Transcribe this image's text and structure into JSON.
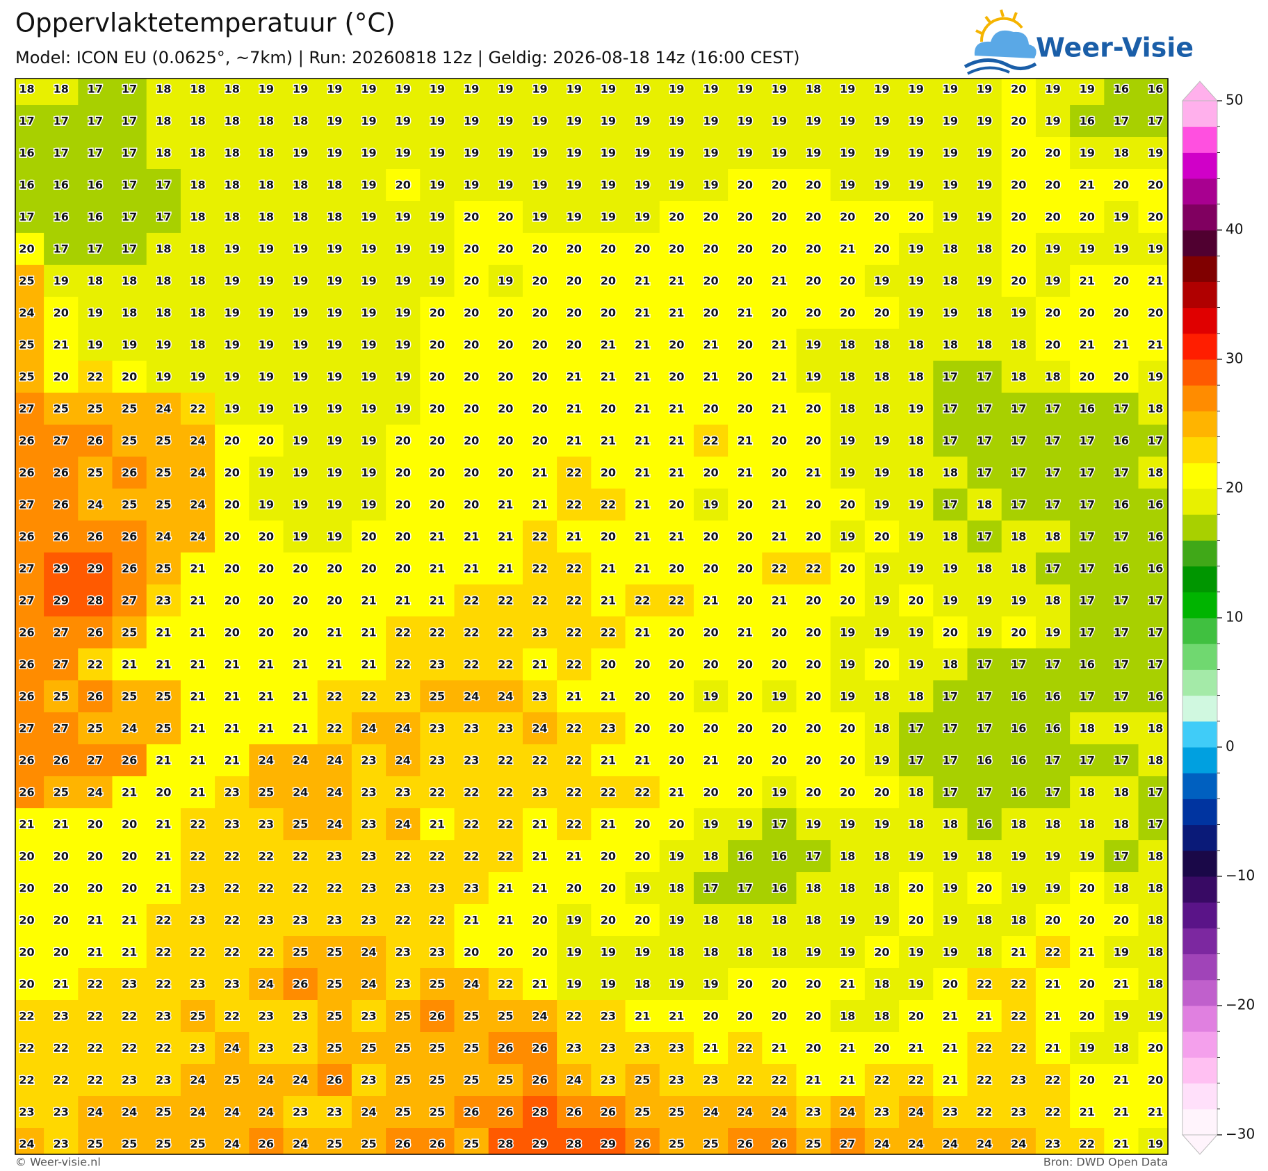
{
  "chart_data": {
    "type": "heatmap",
    "title": "Oppervlaktetemperatuur (°C)",
    "subtitle": "Model: ICON EU (0.0625°, ~7km)  |  Run: 20260818 12z  |  Geldig: 2026-08-18 14z (16:00 CEST)",
    "logo": "Weer-Visie",
    "footer_left": "© Weer-visie.nl",
    "footer_right": "Bron: DWD Open Data",
    "values": [
      [
        18,
        18,
        17,
        17,
        18,
        18,
        18,
        19,
        19,
        19,
        19,
        19,
        19,
        19,
        19,
        19,
        19,
        19,
        19,
        19,
        19,
        19,
        19,
        18,
        19,
        19,
        19,
        19,
        19,
        20,
        19,
        19,
        16,
        16
      ],
      [
        17,
        17,
        17,
        17,
        18,
        18,
        18,
        18,
        18,
        19,
        19,
        19,
        19,
        19,
        19,
        19,
        19,
        19,
        19,
        19,
        19,
        19,
        19,
        19,
        19,
        19,
        19,
        19,
        19,
        20,
        19,
        16,
        17,
        17
      ],
      [
        16,
        17,
        17,
        17,
        18,
        18,
        18,
        18,
        19,
        19,
        19,
        19,
        19,
        19,
        19,
        19,
        19,
        19,
        19,
        19,
        19,
        19,
        19,
        19,
        19,
        19,
        19,
        19,
        19,
        20,
        20,
        19,
        18,
        19
      ],
      [
        16,
        16,
        16,
        17,
        17,
        18,
        18,
        18,
        18,
        18,
        19,
        20,
        19,
        19,
        19,
        19,
        19,
        19,
        19,
        19,
        19,
        20,
        20,
        20,
        19,
        19,
        19,
        19,
        19,
        20,
        20,
        21,
        20,
        20
      ],
      [
        17,
        16,
        16,
        17,
        17,
        18,
        18,
        18,
        18,
        18,
        19,
        19,
        19,
        20,
        20,
        19,
        19,
        19,
        19,
        20,
        20,
        20,
        20,
        20,
        20,
        20,
        20,
        19,
        19,
        20,
        20,
        20,
        19,
        20
      ],
      [
        20,
        17,
        17,
        17,
        18,
        18,
        19,
        19,
        19,
        19,
        19,
        19,
        19,
        20,
        20,
        20,
        20,
        20,
        20,
        20,
        20,
        20,
        20,
        20,
        21,
        20,
        19,
        18,
        18,
        20,
        19,
        19,
        19,
        19
      ],
      [
        25,
        19,
        18,
        18,
        18,
        18,
        19,
        19,
        19,
        19,
        19,
        19,
        19,
        20,
        19,
        20,
        20,
        20,
        21,
        21,
        20,
        20,
        21,
        20,
        20,
        19,
        19,
        18,
        19,
        20,
        19,
        21,
        20,
        21
      ],
      [
        24,
        20,
        19,
        18,
        18,
        18,
        19,
        19,
        19,
        19,
        19,
        19,
        20,
        20,
        20,
        20,
        20,
        20,
        21,
        21,
        20,
        21,
        20,
        20,
        20,
        20,
        19,
        19,
        18,
        19,
        20,
        20,
        20,
        20
      ],
      [
        25,
        21,
        19,
        19,
        19,
        18,
        19,
        19,
        19,
        19,
        19,
        19,
        20,
        20,
        20,
        20,
        20,
        21,
        21,
        20,
        21,
        20,
        21,
        19,
        18,
        18,
        18,
        18,
        18,
        18,
        20,
        21,
        21,
        21
      ],
      [
        25,
        20,
        22,
        20,
        19,
        19,
        19,
        19,
        19,
        19,
        19,
        19,
        20,
        20,
        20,
        20,
        21,
        21,
        21,
        20,
        21,
        20,
        21,
        19,
        18,
        18,
        18,
        17,
        17,
        18,
        18,
        20,
        20,
        19
      ],
      [
        27,
        25,
        25,
        25,
        24,
        22,
        19,
        19,
        19,
        19,
        19,
        19,
        20,
        20,
        20,
        20,
        21,
        20,
        21,
        21,
        20,
        20,
        21,
        20,
        18,
        18,
        19,
        17,
        17,
        17,
        17,
        16,
        17,
        18
      ],
      [
        26,
        27,
        26,
        25,
        25,
        24,
        20,
        20,
        19,
        19,
        19,
        20,
        20,
        20,
        20,
        20,
        21,
        21,
        21,
        21,
        22,
        21,
        20,
        20,
        19,
        19,
        18,
        17,
        17,
        17,
        17,
        17,
        16,
        17
      ],
      [
        26,
        26,
        25,
        26,
        25,
        24,
        20,
        19,
        19,
        19,
        19,
        20,
        20,
        20,
        20,
        21,
        22,
        20,
        21,
        21,
        20,
        21,
        20,
        21,
        19,
        19,
        18,
        18,
        17,
        17,
        17,
        17,
        17,
        18
      ],
      [
        27,
        26,
        24,
        25,
        25,
        24,
        20,
        19,
        19,
        19,
        19,
        20,
        20,
        20,
        21,
        21,
        22,
        22,
        21,
        20,
        19,
        20,
        21,
        20,
        20,
        19,
        19,
        17,
        18,
        17,
        17,
        17,
        16,
        16
      ],
      [
        26,
        26,
        26,
        26,
        24,
        24,
        20,
        20,
        19,
        19,
        20,
        20,
        21,
        21,
        21,
        22,
        21,
        20,
        21,
        21,
        20,
        20,
        21,
        20,
        19,
        20,
        19,
        18,
        17,
        18,
        18,
        17,
        17,
        16
      ],
      [
        27,
        29,
        29,
        26,
        25,
        21,
        20,
        20,
        20,
        20,
        20,
        20,
        21,
        21,
        21,
        22,
        22,
        21,
        21,
        20,
        20,
        20,
        22,
        22,
        20,
        19,
        19,
        19,
        18,
        18,
        17,
        17,
        16,
        16
      ],
      [
        27,
        29,
        28,
        27,
        23,
        21,
        20,
        20,
        20,
        20,
        21,
        21,
        21,
        22,
        22,
        22,
        22,
        21,
        22,
        22,
        21,
        20,
        21,
        20,
        20,
        19,
        20,
        19,
        19,
        19,
        18,
        17,
        17,
        17
      ],
      [
        26,
        27,
        26,
        25,
        21,
        21,
        20,
        20,
        20,
        21,
        21,
        22,
        22,
        22,
        22,
        23,
        22,
        22,
        21,
        20,
        20,
        21,
        20,
        20,
        19,
        19,
        19,
        20,
        19,
        20,
        19,
        17,
        17,
        17
      ],
      [
        26,
        27,
        22,
        21,
        21,
        21,
        21,
        21,
        21,
        21,
        21,
        22,
        23,
        22,
        22,
        21,
        22,
        20,
        20,
        20,
        20,
        20,
        20,
        20,
        19,
        20,
        19,
        18,
        17,
        17,
        17,
        16,
        17,
        17
      ],
      [
        26,
        25,
        26,
        25,
        25,
        21,
        21,
        21,
        21,
        22,
        22,
        23,
        25,
        24,
        24,
        23,
        21,
        21,
        20,
        20,
        19,
        20,
        19,
        20,
        19,
        18,
        18,
        17,
        17,
        16,
        16,
        17,
        17,
        16
      ],
      [
        27,
        27,
        25,
        24,
        25,
        21,
        21,
        21,
        21,
        22,
        24,
        24,
        23,
        23,
        23,
        24,
        22,
        23,
        20,
        20,
        20,
        20,
        20,
        20,
        20,
        18,
        17,
        17,
        17,
        16,
        16,
        18,
        19,
        18
      ],
      [
        26,
        26,
        27,
        26,
        21,
        21,
        21,
        24,
        24,
        24,
        23,
        24,
        23,
        23,
        22,
        22,
        22,
        21,
        21,
        20,
        21,
        20,
        20,
        20,
        20,
        19,
        17,
        17,
        16,
        16,
        17,
        17,
        17,
        18
      ],
      [
        26,
        25,
        24,
        21,
        20,
        21,
        23,
        25,
        24,
        24,
        23,
        23,
        22,
        22,
        22,
        23,
        22,
        22,
        22,
        21,
        20,
        20,
        19,
        20,
        20,
        20,
        18,
        17,
        17,
        16,
        17,
        18,
        18,
        17
      ],
      [
        21,
        21,
        20,
        20,
        21,
        22,
        23,
        23,
        25,
        24,
        23,
        24,
        21,
        22,
        22,
        21,
        22,
        21,
        20,
        20,
        19,
        19,
        17,
        19,
        19,
        19,
        18,
        18,
        16,
        18,
        18,
        18,
        18,
        17
      ],
      [
        20,
        20,
        20,
        20,
        21,
        22,
        22,
        22,
        22,
        23,
        23,
        22,
        22,
        22,
        22,
        21,
        21,
        20,
        20,
        19,
        18,
        16,
        16,
        17,
        18,
        18,
        19,
        19,
        18,
        19,
        19,
        19,
        17,
        18
      ],
      [
        20,
        20,
        20,
        20,
        21,
        23,
        22,
        22,
        22,
        22,
        23,
        23,
        23,
        23,
        21,
        21,
        20,
        20,
        19,
        18,
        17,
        17,
        16,
        18,
        18,
        18,
        20,
        19,
        20,
        19,
        19,
        20,
        18,
        18
      ],
      [
        20,
        20,
        21,
        21,
        22,
        23,
        22,
        23,
        23,
        23,
        23,
        22,
        22,
        21,
        21,
        20,
        19,
        20,
        20,
        19,
        18,
        18,
        18,
        18,
        19,
        19,
        20,
        19,
        18,
        18,
        20,
        20,
        20,
        18
      ],
      [
        20,
        20,
        21,
        21,
        22,
        22,
        22,
        22,
        25,
        25,
        24,
        23,
        23,
        20,
        20,
        20,
        19,
        19,
        19,
        18,
        18,
        18,
        18,
        19,
        19,
        20,
        19,
        19,
        18,
        21,
        22,
        21,
        19,
        18
      ],
      [
        20,
        21,
        22,
        23,
        22,
        23,
        23,
        24,
        26,
        25,
        24,
        23,
        25,
        24,
        22,
        21,
        19,
        19,
        18,
        19,
        19,
        20,
        20,
        20,
        21,
        18,
        19,
        20,
        22,
        22,
        21,
        20,
        21,
        18
      ],
      [
        22,
        23,
        22,
        22,
        23,
        25,
        22,
        23,
        23,
        25,
        23,
        25,
        26,
        25,
        25,
        24,
        22,
        23,
        21,
        21,
        20,
        20,
        20,
        20,
        18,
        18,
        20,
        21,
        21,
        22,
        21,
        20,
        19,
        19
      ],
      [
        22,
        22,
        22,
        22,
        22,
        23,
        24,
        23,
        23,
        25,
        25,
        25,
        25,
        25,
        26,
        26,
        23,
        23,
        23,
        23,
        21,
        22,
        21,
        20,
        21,
        20,
        21,
        21,
        22,
        22,
        21,
        19,
        18,
        20
      ],
      [
        22,
        22,
        22,
        23,
        23,
        24,
        25,
        24,
        24,
        26,
        23,
        25,
        25,
        25,
        25,
        26,
        24,
        23,
        25,
        23,
        23,
        22,
        22,
        21,
        21,
        22,
        22,
        21,
        22,
        23,
        22,
        20,
        21,
        20
      ],
      [
        23,
        23,
        24,
        24,
        25,
        24,
        24,
        24,
        23,
        23,
        24,
        25,
        25,
        26,
        26,
        28,
        26,
        26,
        25,
        25,
        24,
        24,
        24,
        23,
        24,
        23,
        24,
        23,
        22,
        23,
        22,
        21,
        21,
        21
      ],
      [
        24,
        23,
        25,
        25,
        25,
        25,
        24,
        26,
        24,
        25,
        25,
        26,
        26,
        25,
        28,
        29,
        28,
        29,
        26,
        25,
        25,
        26,
        26,
        25,
        27,
        24,
        24,
        24,
        24,
        24,
        23,
        22,
        21,
        19
      ]
    ],
    "colorbar": {
      "lim": [
        -30,
        50
      ],
      "ticks": [
        {
          "value": -30,
          "label": "−30"
        },
        {
          "value": -20,
          "label": "−20"
        },
        {
          "value": -10,
          "label": "−10"
        },
        0,
        10,
        20,
        30,
        40,
        50
      ],
      "colors": [
        "#fff4fc",
        "#ffe0fa",
        "#ffc0f2",
        "#f4a0ec",
        "#e080e0",
        "#c060cc",
        "#a044b8",
        "#7c28a0",
        "#5a1488",
        "#380a64",
        "#1a0848",
        "#0a1a78",
        "#0034a0",
        "#0060c0",
        "#00a0e0",
        "#40ccf8",
        "#d0f8e0",
        "#a4eaa8",
        "#70d870",
        "#40c040",
        "#00b400",
        "#009600",
        "#40a818",
        "#a8d000",
        "#e8f000",
        "#ffff00",
        "#ffd800",
        "#ffb400",
        "#ff8c00",
        "#ff5a00",
        "#ff1e00",
        "#e00000",
        "#b00000",
        "#800000",
        "#500030",
        "#800060",
        "#a80090",
        "#d000c8",
        "#ff50e0",
        "#ffb0ec"
      ]
    }
  }
}
